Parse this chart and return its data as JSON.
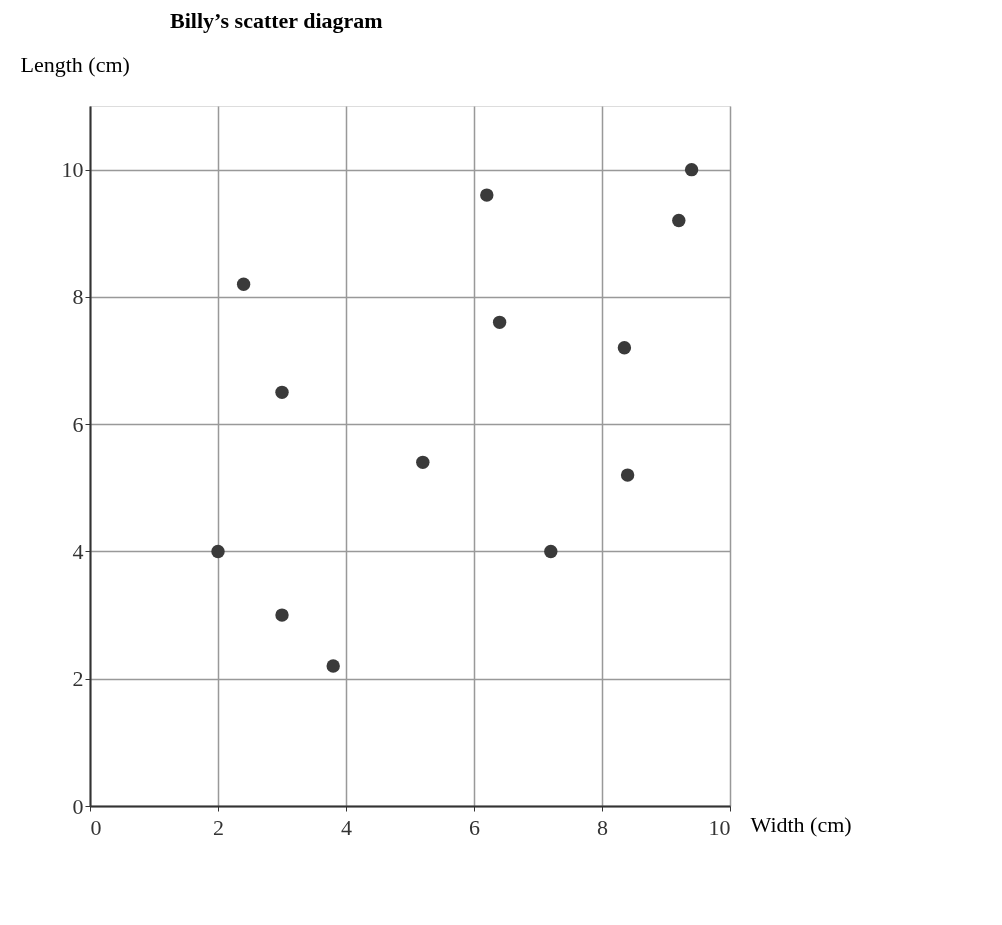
{
  "chart_data": {
    "type": "scatter",
    "title": "Billy’s scatter diagram",
    "xlabel": "Width (cm)",
    "ylabel": "Length (cm)",
    "x": [
      2,
      2.4,
      3,
      3,
      3.8,
      5.2,
      6.2,
      6.4,
      7.2,
      8.35,
      8.4,
      9.2,
      9.4
    ],
    "series": [
      {
        "color": "#3a3a3a",
        "values": [
          4,
          8.2,
          6.5,
          3,
          2.2,
          5.4,
          9.6,
          7.6,
          4,
          7.2,
          5.2,
          9.2,
          10
        ]
      }
    ],
    "xlim": [
      0,
      10
    ],
    "ylim": [
      0,
      11
    ],
    "xticks": [
      0,
      2,
      4,
      6,
      8,
      10
    ],
    "yticks": [
      0,
      2,
      4,
      6,
      8,
      10
    ],
    "grid": true,
    "marker": "circle"
  }
}
